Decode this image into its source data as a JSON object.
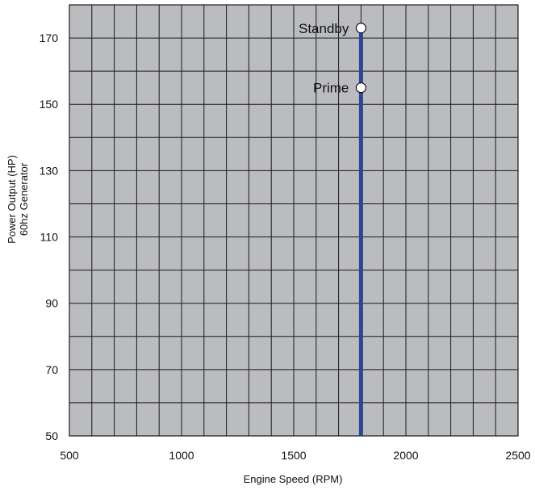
{
  "chart_data": {
    "type": "scatter",
    "title": "",
    "xlabel": "Engine Speed  (RPM)",
    "ylabel_lines": [
      "Power Output (HP)",
      "60hz Generator"
    ],
    "xlim": [
      500,
      2500
    ],
    "ylim": [
      50,
      180
    ],
    "xticks": [
      500,
      1000,
      1500,
      2000,
      2500
    ],
    "yticks": [
      50,
      70,
      90,
      110,
      130,
      150,
      170
    ],
    "grid": true,
    "x_grid_step": 100,
    "y_grid_step": 10,
    "colors": {
      "plot_background": "#bbbcbf",
      "grid": "#1a1a1a",
      "vertical_line": "#2e4593",
      "marker_fill": "#ffffff",
      "marker_stroke": "#111111"
    },
    "reference_line": {
      "x": 1800,
      "y_from": 50,
      "y_to": 173
    },
    "points": [
      {
        "label": "Standby",
        "x": 1800,
        "y": 173
      },
      {
        "label": "Prime",
        "x": 1800,
        "y": 155
      }
    ]
  }
}
